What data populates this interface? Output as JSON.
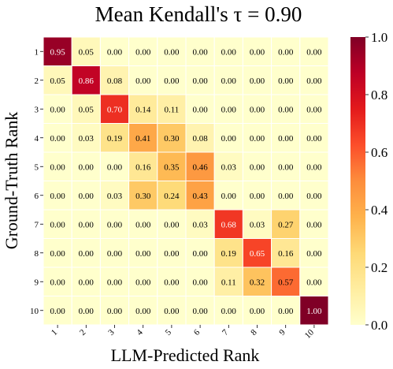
{
  "chart_data": {
    "type": "heatmap",
    "title": "Mean Kendall's τ = 0.90",
    "xlabel": "LLM-Predicted Rank",
    "ylabel": "Ground-Truth Rank",
    "x_categories": [
      "1",
      "2",
      "3",
      "4",
      "5",
      "6",
      "7",
      "8",
      "9",
      "10"
    ],
    "y_categories": [
      "1",
      "2",
      "3",
      "4",
      "5",
      "6",
      "7",
      "8",
      "9",
      "10"
    ],
    "values": [
      [
        0.95,
        0.05,
        0.0,
        0.0,
        0.0,
        0.0,
        0.0,
        0.0,
        0.0,
        0.0
      ],
      [
        0.05,
        0.86,
        0.08,
        0.0,
        0.0,
        0.0,
        0.0,
        0.0,
        0.0,
        0.0
      ],
      [
        0.0,
        0.05,
        0.7,
        0.14,
        0.11,
        0.0,
        0.0,
        0.0,
        0.0,
        0.0
      ],
      [
        0.0,
        0.03,
        0.19,
        0.41,
        0.3,
        0.08,
        0.0,
        0.0,
        0.0,
        0.0
      ],
      [
        0.0,
        0.0,
        0.0,
        0.16,
        0.35,
        0.46,
        0.03,
        0.0,
        0.0,
        0.0
      ],
      [
        0.0,
        0.0,
        0.03,
        0.3,
        0.24,
        0.43,
        0.0,
        0.0,
        0.0,
        0.0
      ],
      [
        0.0,
        0.0,
        0.0,
        0.0,
        0.0,
        0.03,
        0.68,
        0.03,
        0.27,
        0.0
      ],
      [
        0.0,
        0.0,
        0.0,
        0.0,
        0.0,
        0.0,
        0.19,
        0.65,
        0.16,
        0.0
      ],
      [
        0.0,
        0.0,
        0.0,
        0.0,
        0.0,
        0.0,
        0.11,
        0.32,
        0.57,
        0.0
      ],
      [
        0.0,
        0.0,
        0.0,
        0.0,
        0.0,
        0.0,
        0.0,
        0.0,
        0.0,
        1.0
      ]
    ],
    "value_range": [
      0.0,
      1.0
    ],
    "colorbar_ticks": [
      "0.0",
      "0.2",
      "0.4",
      "0.6",
      "0.8",
      "1.0"
    ],
    "colormap": "YlOrRd",
    "grid": false,
    "legend": "colorbar-right"
  }
}
